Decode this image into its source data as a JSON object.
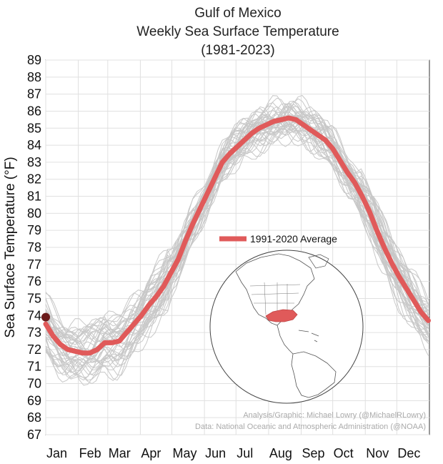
{
  "chart_data": {
    "type": "line",
    "title_lines": [
      "Gulf of Mexico",
      "Weekly Sea Surface Temperature",
      "(1981-2023)"
    ],
    "xlabel": "",
    "ylabel": "Sea Surface Temperature (°F)",
    "ylim": [
      67,
      89
    ],
    "yticks": [
      67,
      68,
      69,
      70,
      71,
      72,
      73,
      74,
      75,
      76,
      77,
      78,
      79,
      80,
      81,
      82,
      83,
      84,
      85,
      86,
      87,
      88,
      89
    ],
    "xlim": [
      1,
      366
    ],
    "month_ticks": [
      {
        "label": "Jan",
        "day": 1
      },
      {
        "label": "Feb",
        "day": 32
      },
      {
        "label": "Mar",
        "day": 60
      },
      {
        "label": "Apr",
        "day": 91
      },
      {
        "label": "May",
        "day": 121
      },
      {
        "label": "Jun",
        "day": 152
      },
      {
        "label": "Jul",
        "day": 182
      },
      {
        "label": "Aug",
        "day": 213
      },
      {
        "label": "Sep",
        "day": 244
      },
      {
        "label": "Oct",
        "day": 274
      },
      {
        "label": "Nov",
        "day": 305
      },
      {
        "label": "Dec",
        "day": 335
      }
    ],
    "grid": true,
    "legend_position": "center-right",
    "series": [
      {
        "name": "1991-2020 Average",
        "color": "#e05a5a",
        "x": [
          1,
          8,
          15,
          22,
          29,
          36,
          43,
          50,
          57,
          64,
          71,
          78,
          85,
          92,
          99,
          106,
          113,
          120,
          127,
          134,
          141,
          148,
          155,
          162,
          169,
          176,
          183,
          190,
          197,
          204,
          211,
          218,
          225,
          232,
          239,
          246,
          253,
          260,
          267,
          274,
          281,
          288,
          295,
          302,
          309,
          316,
          323,
          330,
          337,
          344,
          351,
          358,
          365
        ],
        "y": [
          73.5,
          72.8,
          72.3,
          72.0,
          71.9,
          71.8,
          71.8,
          72.0,
          72.4,
          72.4,
          72.5,
          73.0,
          73.5,
          74.0,
          74.6,
          75.1,
          75.7,
          76.5,
          77.3,
          78.4,
          79.4,
          80.3,
          81.2,
          82.1,
          83.0,
          83.5,
          83.9,
          84.3,
          84.7,
          85.0,
          85.2,
          85.4,
          85.5,
          85.6,
          85.5,
          85.2,
          84.9,
          84.6,
          84.3,
          83.8,
          83.1,
          82.4,
          81.8,
          81.0,
          80.1,
          79.0,
          78.0,
          77.1,
          76.3,
          75.6,
          74.9,
          74.2,
          73.7
        ]
      }
    ],
    "background_series": {
      "description_color": "#cccccc",
      "count": 42
    },
    "current_point": {
      "x": 1,
      "y": 73.9,
      "color": "#6b1a1a"
    },
    "credits": [
      "Analysis/Graphic: Michael Lowry (@MichaelRLowry)",
      "Data: National Oceanic and Atmospheric Administration (@NOAA)"
    ]
  },
  "colors": {
    "average_line": "#e05a5a",
    "background_lines": "#c8c8c8",
    "grid": "#e0e0e0",
    "current_point": "#6b1a1a"
  }
}
